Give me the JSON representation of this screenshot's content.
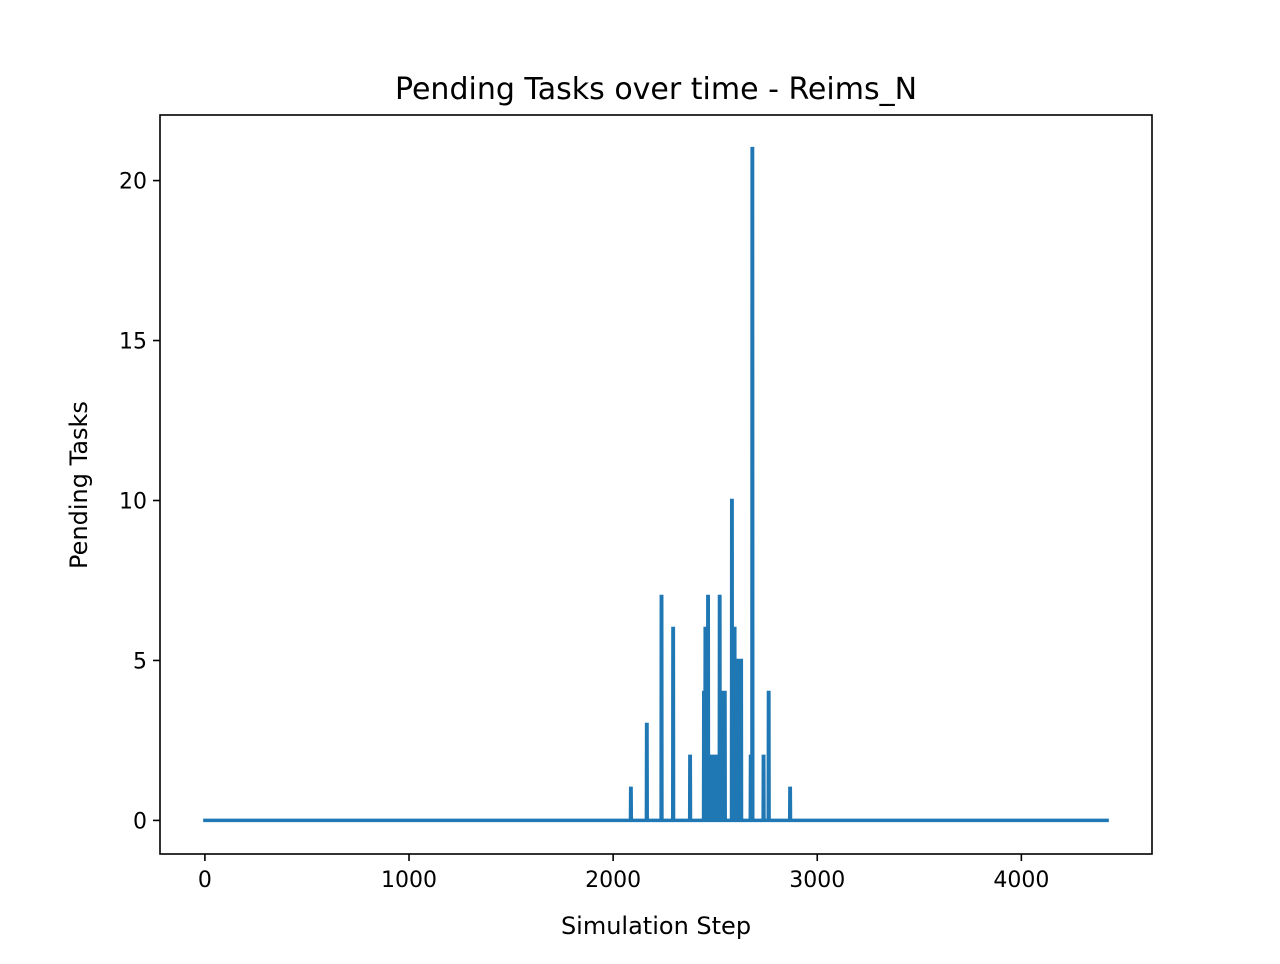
{
  "chart_data": {
    "type": "line",
    "title": "Pending Tasks over time - Reims_N",
    "xlabel": "Simulation Step",
    "ylabel": "Pending Tasks",
    "xlim": [
      -220,
      4640
    ],
    "ylim": [
      -1.05,
      22.05
    ],
    "xticks": [
      0,
      1000,
      2000,
      3000,
      4000
    ],
    "xtick_labels": [
      "0",
      "1000",
      "2000",
      "3000",
      "4000"
    ],
    "yticks": [
      0,
      5,
      10,
      15,
      20
    ],
    "ytick_labels": [
      "0",
      "5",
      "10",
      "15",
      "20"
    ],
    "grid": false,
    "line_color": "#1f77b4",
    "series": [
      {
        "x": [
          0,
          2085,
          2086,
          2088,
          2089,
          2163,
          2164,
          2166,
          2167,
          2235,
          2236,
          2238,
          2239,
          2292,
          2293,
          2295,
          2296,
          2375,
          2376,
          2378,
          2379,
          2443,
          2444,
          2446,
          2447,
          2450,
          2451,
          2453,
          2454,
          2463,
          2464,
          2466,
          2467,
          2478,
          2479,
          2481,
          2482,
          2490,
          2491,
          2493,
          2494,
          2505,
          2506,
          2508,
          2509,
          2520,
          2521,
          2523,
          2524,
          2538,
          2539,
          2541,
          2542,
          2545,
          2546,
          2548,
          2549,
          2580,
          2581,
          2583,
          2584,
          2593,
          2594,
          2596,
          2597,
          2608,
          2609,
          2611,
          2612,
          2618,
          2619,
          2621,
          2622,
          2625,
          2626,
          2628,
          2629,
          2672,
          2673,
          2675,
          2676,
          2680,
          2681,
          2683,
          2684,
          2735,
          2736,
          2738,
          2739,
          2760,
          2761,
          2763,
          2764,
          2865,
          2866,
          2868,
          2869,
          4420
        ],
        "y": [
          0,
          0,
          1,
          1,
          0,
          0,
          3,
          3,
          0,
          0,
          7,
          7,
          0,
          0,
          6,
          6,
          0,
          0,
          2,
          2,
          0,
          0,
          4,
          4,
          0,
          0,
          6,
          6,
          0,
          0,
          7,
          7,
          0,
          0,
          2,
          2,
          0,
          0,
          2,
          2,
          0,
          0,
          2,
          2,
          0,
          0,
          7,
          7,
          0,
          0,
          4,
          4,
          0,
          0,
          4,
          4,
          0,
          0,
          10,
          10,
          0,
          0,
          6,
          6,
          0,
          0,
          5,
          5,
          0,
          0,
          5,
          5,
          0,
          0,
          5,
          5,
          0,
          0,
          2,
          2,
          0,
          0,
          21,
          21,
          0,
          0,
          2,
          2,
          0,
          0,
          4,
          4,
          0,
          0,
          1,
          1,
          0,
          0
        ]
      }
    ]
  }
}
